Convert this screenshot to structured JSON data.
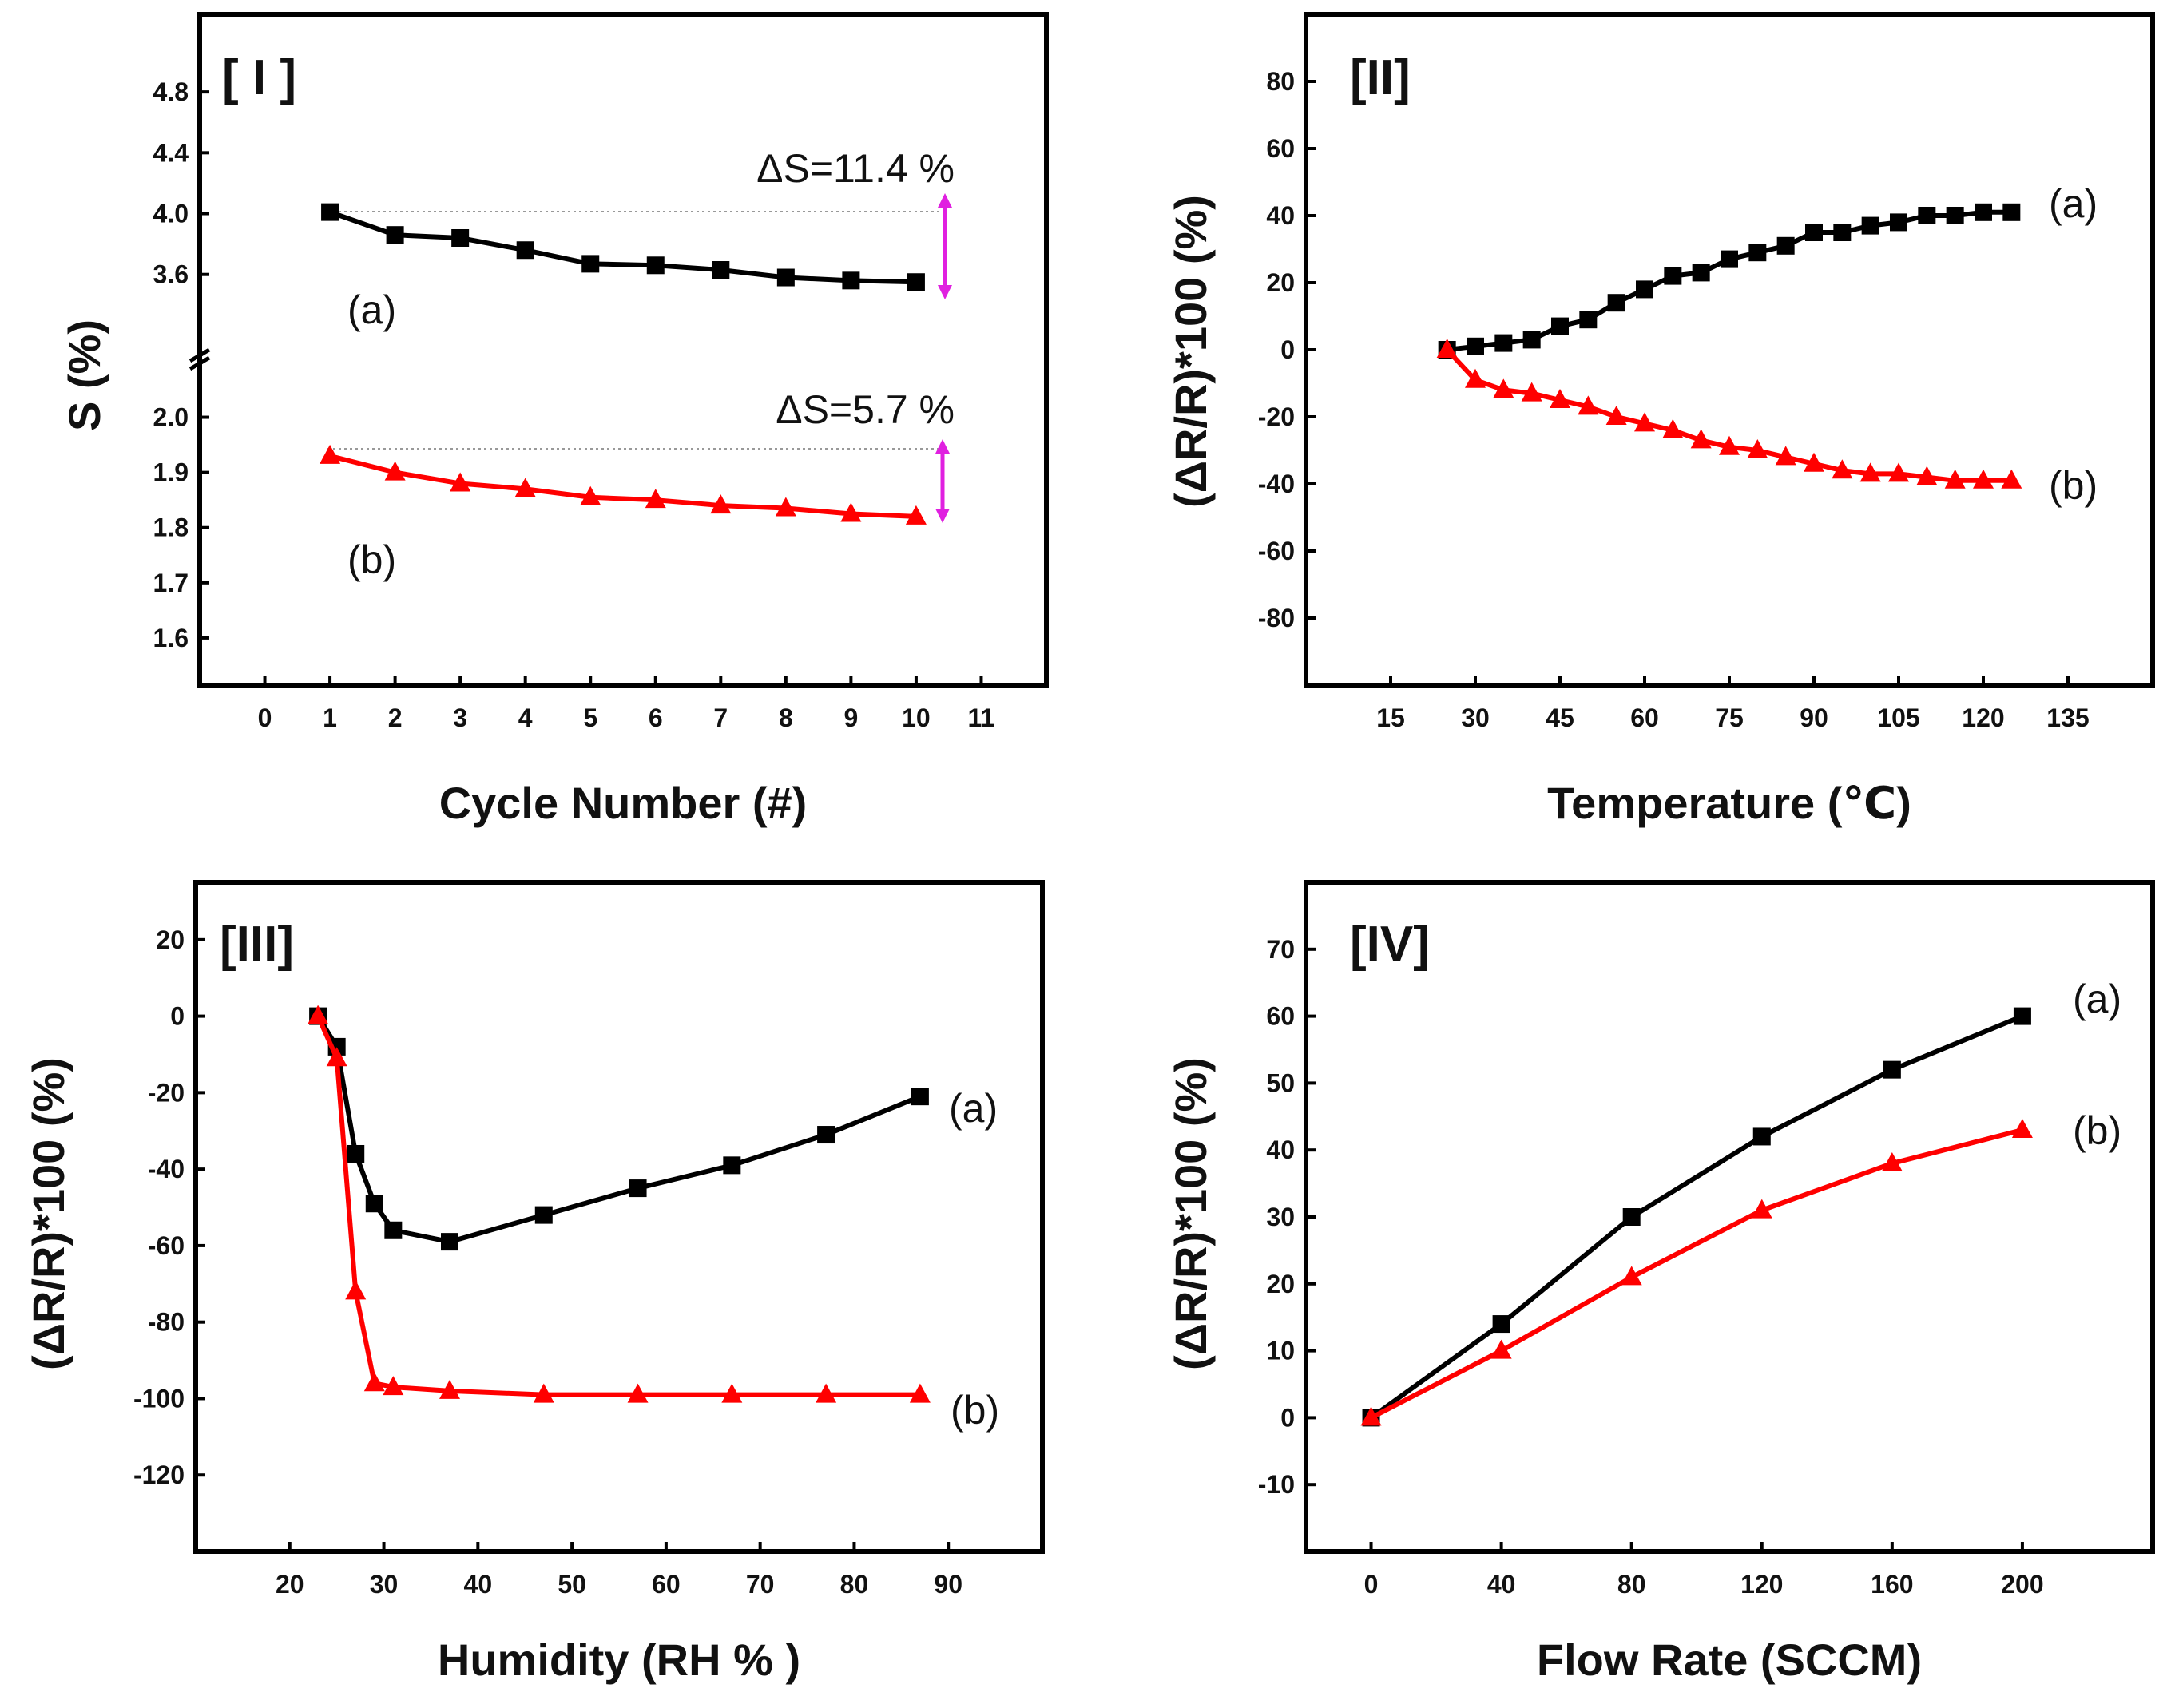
{
  "chart_data": [
    {
      "type": "line",
      "panel_label": "[ I ]",
      "xlabel": "Cycle Number (#)",
      "ylabel": "S (%)",
      "axis_break": true,
      "xlim": [
        -1,
        12
      ],
      "xticks": [
        "0",
        "1",
        "2",
        "3",
        "4",
        "5",
        "6",
        "7",
        "8",
        "9",
        "10",
        "11"
      ],
      "upper_ylim": [
        3.0,
        5.1
      ],
      "upper_yticks": [
        "3.6",
        "4.0",
        "4.4",
        "4.8"
      ],
      "lower_ylim": [
        1.5,
        2.05
      ],
      "lower_yticks": [
        "1.6",
        "1.7",
        "1.8",
        "1.9",
        "2.0"
      ],
      "series": [
        {
          "name": "(a)",
          "color": "#000000",
          "marker": "square",
          "segment": "upper",
          "x": [
            1,
            2,
            3,
            4,
            5,
            6,
            7,
            8,
            9,
            10
          ],
          "y": [
            4.01,
            3.86,
            3.84,
            3.76,
            3.67,
            3.66,
            3.63,
            3.58,
            3.56,
            3.55
          ]
        },
        {
          "name": "(b)",
          "color": "#ff0000",
          "marker": "triangle",
          "segment": "lower",
          "x": [
            1,
            2,
            3,
            4,
            5,
            6,
            7,
            8,
            9,
            10
          ],
          "y": [
            1.93,
            1.9,
            1.88,
            1.87,
            1.855,
            1.85,
            1.84,
            1.835,
            1.825,
            1.82
          ]
        }
      ],
      "annotations": [
        {
          "text": "ΔS=11.4 %",
          "color": "#e020e0"
        },
        {
          "text": "ΔS=5.7 %",
          "color": "#e020e0"
        }
      ]
    },
    {
      "type": "line",
      "panel_label": "[II]",
      "xlabel": "Temperature (℃)",
      "ylabel": "(ΔR/R)*100 (%)",
      "xlim": [
        0,
        150
      ],
      "xticks": [
        "15",
        "30",
        "45",
        "60",
        "75",
        "90",
        "105",
        "120",
        "135"
      ],
      "ylim": [
        -100,
        100
      ],
      "yticks": [
        "-80",
        "-60",
        "-40",
        "-20",
        "0",
        "20",
        "40",
        "60",
        "80"
      ],
      "series": [
        {
          "name": "(a)",
          "color": "#000000",
          "marker": "square",
          "x": [
            25,
            30,
            35,
            40,
            45,
            50,
            55,
            60,
            65,
            70,
            75,
            80,
            85,
            90,
            95,
            100,
            105,
            110,
            115,
            120,
            125
          ],
          "y": [
            0,
            1,
            2,
            3,
            7,
            9,
            14,
            18,
            22,
            23,
            27,
            29,
            31,
            35,
            35,
            37,
            38,
            40,
            40,
            41,
            41
          ]
        },
        {
          "name": "(b)",
          "color": "#ff0000",
          "marker": "triangle",
          "x": [
            25,
            30,
            35,
            40,
            45,
            50,
            55,
            60,
            65,
            70,
            75,
            80,
            85,
            90,
            95,
            100,
            105,
            110,
            115,
            120,
            125
          ],
          "y": [
            0,
            -9,
            -12,
            -13,
            -15,
            -17,
            -20,
            -22,
            -24,
            -27,
            -29,
            -30,
            -32,
            -34,
            -36,
            -37,
            -37,
            -38,
            -39,
            -39,
            -39
          ]
        }
      ]
    },
    {
      "type": "line",
      "panel_label": "[III]",
      "xlabel": "Humidity (RH % )",
      "ylabel": "(ΔR/R)*100 (%)",
      "xlim": [
        10,
        100
      ],
      "xticks": [
        "20",
        "30",
        "40",
        "50",
        "60",
        "70",
        "80",
        "90"
      ],
      "ylim": [
        -140,
        35
      ],
      "yticks": [
        "-120",
        "-100",
        "-80",
        "-60",
        "-40",
        "-20",
        "0",
        "20"
      ],
      "series": [
        {
          "name": "(a)",
          "color": "#000000",
          "marker": "square",
          "x": [
            23,
            25,
            27,
            29,
            31,
            37,
            47,
            57,
            67,
            77,
            87
          ],
          "y": [
            0,
            -8,
            -36,
            -49,
            -56,
            -59,
            -52,
            -45,
            -39,
            -31,
            -21
          ]
        },
        {
          "name": "(b)",
          "color": "#ff0000",
          "marker": "triangle",
          "x": [
            23,
            25,
            27,
            29,
            31,
            37,
            47,
            57,
            67,
            77,
            87
          ],
          "y": [
            0,
            -11,
            -72,
            -96,
            -97,
            -98,
            -99,
            -99,
            -99,
            -99,
            -99
          ]
        }
      ]
    },
    {
      "type": "line",
      "panel_label": "[IV]",
      "xlabel": "Flow Rate (SCCM)",
      "ylabel": "(ΔR/R)*100 (%)",
      "xlim": [
        -20,
        240
      ],
      "xticks": [
        "0",
        "40",
        "80",
        "120",
        "160",
        "200"
      ],
      "ylim": [
        -20,
        80
      ],
      "yticks": [
        "-10",
        "0",
        "10",
        "20",
        "30",
        "40",
        "50",
        "60",
        "70"
      ],
      "series": [
        {
          "name": "(a)",
          "color": "#000000",
          "marker": "square",
          "x": [
            0,
            40,
            80,
            120,
            160,
            200
          ],
          "y": [
            0,
            14,
            30,
            42,
            52,
            60
          ]
        },
        {
          "name": "(b)",
          "color": "#ff0000",
          "marker": "triangle",
          "x": [
            0,
            40,
            80,
            120,
            160,
            200
          ],
          "y": [
            0,
            10,
            21,
            31,
            38,
            43
          ]
        }
      ]
    }
  ]
}
